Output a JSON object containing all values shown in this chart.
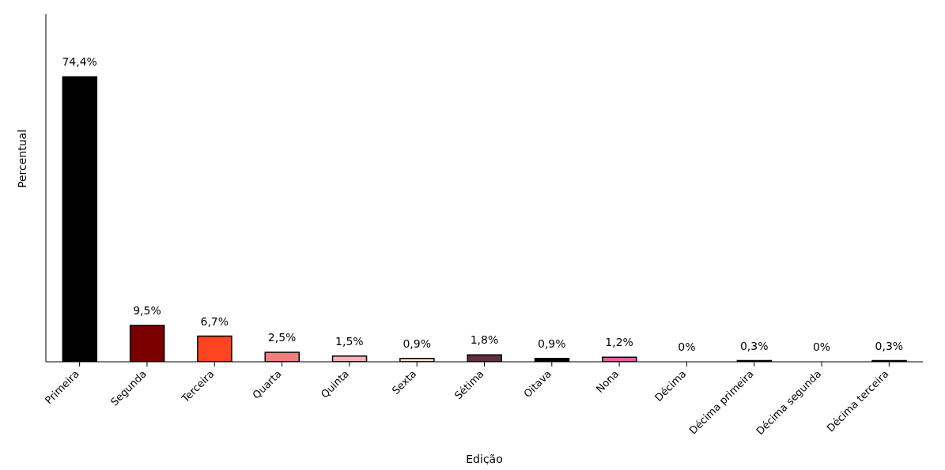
{
  "chart_data": {
    "type": "bar",
    "xlabel": "Edição",
    "ylabel": "Percentual",
    "categories": [
      "Primeira",
      "Segunda",
      "Terceira",
      "Quarta",
      "Quinta",
      "Sexta",
      "Sétima",
      "Oitava",
      "Nona",
      "Décima",
      "Décima primeira",
      "Décima segunda",
      "Décima terceira"
    ],
    "values": [
      74.4,
      9.5,
      6.7,
      2.5,
      1.5,
      0.9,
      1.8,
      0.9,
      1.2,
      0,
      0.3,
      0,
      0.3
    ],
    "colors": [
      "#000000",
      "#7a0000",
      "#ff4422",
      "#f08080",
      "#f4b4b4",
      "#f8e4dc",
      "#603040",
      "#000000",
      "#e060a0",
      "#000000",
      "#000000",
      "#000000",
      "#000000"
    ],
    "value_labels": [
      "74,4%",
      "9,5%",
      "6,7%",
      "2,5%",
      "1,5%",
      "0,9%",
      "1,8%",
      "0,9%",
      "1,2%",
      "0%",
      "0,3%",
      "0%",
      "0,3%"
    ],
    "grid": false,
    "legend": false
  }
}
